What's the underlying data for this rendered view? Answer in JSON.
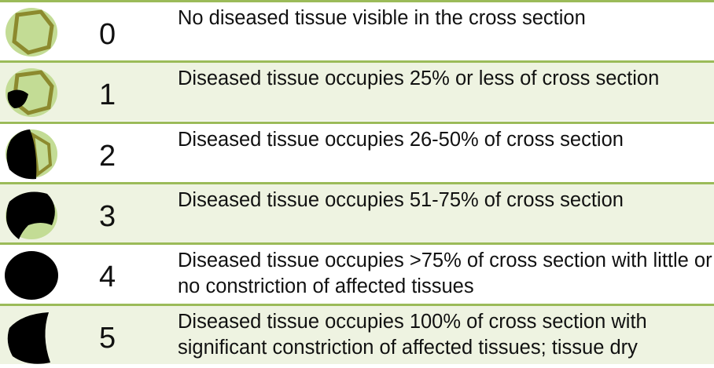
{
  "rows": [
    {
      "score": "0",
      "description": "No diseased tissue visible in the cross section"
    },
    {
      "score": "1",
      "description": "Diseased tissue occupies 25% or less of cross section"
    },
    {
      "score": "2",
      "description": "Diseased tissue occupies 26-50% of cross section"
    },
    {
      "score": "3",
      "description": "Diseased tissue occupies 51-75% of cross section"
    },
    {
      "score": "4",
      "description": "Diseased tissue occupies >75% of cross section with little or no constriction of affected tissues"
    },
    {
      "score": "5",
      "description": "Diseased tissue occupies 100% of cross section with significant constriction of affected tissues; tissue dry"
    }
  ]
}
